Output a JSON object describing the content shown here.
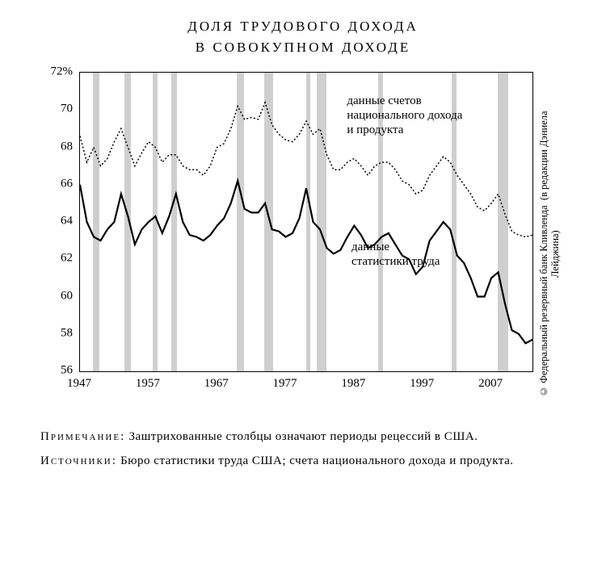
{
  "title_line1": "ДОЛЯ ТРУДОВОГО ДОХОДА",
  "title_line2": "В СОВОКУПНОМ ДОХОДЕ",
  "chart": {
    "type": "line",
    "background_color": "#ffffff",
    "recession_color": "#cfcfcf",
    "axis_color": "#000000",
    "x": {
      "min": 1947,
      "max": 2013,
      "ticks": [
        1947,
        1957,
        1967,
        1977,
        1987,
        1997,
        2007
      ]
    },
    "y": {
      "min": 56,
      "max": 72,
      "ticks": [
        56,
        58,
        60,
        62,
        64,
        66,
        68,
        70
      ],
      "unit_suffix_on_top": "%",
      "top_tick_label": "72%"
    },
    "recessions": [
      {
        "start": 1948.9,
        "end": 1949.8
      },
      {
        "start": 1953.5,
        "end": 1954.4
      },
      {
        "start": 1957.6,
        "end": 1958.3
      },
      {
        "start": 1960.3,
        "end": 1961.1
      },
      {
        "start": 1969.9,
        "end": 1970.9
      },
      {
        "start": 1973.9,
        "end": 1975.2
      },
      {
        "start": 1980.0,
        "end": 1980.6
      },
      {
        "start": 1981.5,
        "end": 1982.9
      },
      {
        "start": 1990.5,
        "end": 1991.2
      },
      {
        "start": 2001.2,
        "end": 2001.9
      },
      {
        "start": 2007.9,
        "end": 2009.5
      }
    ],
    "series": [
      {
        "id": "nipa",
        "label_lines": [
          "данные счетов",
          "национального дохода",
          "и продукта"
        ],
        "label_x": 0.59,
        "label_y": 0.07,
        "color": "#000000",
        "stroke_width": 1.5,
        "dash": "2 2.5",
        "x": [
          1947,
          1948,
          1949,
          1950,
          1951,
          1952,
          1953,
          1954,
          1955,
          1956,
          1957,
          1958,
          1959,
          1960,
          1961,
          1962,
          1963,
          1964,
          1965,
          1966,
          1967,
          1968,
          1969,
          1970,
          1971,
          1972,
          1973,
          1974,
          1975,
          1976,
          1977,
          1978,
          1979,
          1980,
          1981,
          1982,
          1983,
          1984,
          1985,
          1986,
          1987,
          1988,
          1989,
          1990,
          1991,
          1992,
          1993,
          1994,
          1995,
          1996,
          1997,
          1998,
          1999,
          2000,
          2001,
          2002,
          2003,
          2004,
          2005,
          2006,
          2007,
          2008,
          2009,
          2010,
          2011,
          2012,
          2013
        ],
        "y": [
          68.6,
          67.2,
          68.0,
          67.0,
          67.4,
          68.3,
          69.0,
          68.0,
          67.0,
          67.7,
          68.3,
          68.0,
          67.2,
          67.6,
          67.6,
          67.0,
          66.8,
          66.8,
          66.5,
          67.0,
          68.0,
          68.2,
          69.0,
          70.2,
          69.5,
          69.6,
          69.5,
          70.4,
          69.2,
          68.7,
          68.4,
          68.3,
          68.7,
          69.4,
          68.7,
          69.0,
          67.6,
          66.8,
          66.8,
          67.2,
          67.4,
          67.0,
          66.5,
          67.0,
          67.2,
          67.2,
          66.8,
          66.2,
          66.0,
          65.5,
          65.7,
          66.5,
          67.0,
          67.5,
          67.2,
          66.5,
          66.0,
          65.5,
          64.8,
          64.6,
          65.0,
          65.5,
          64.4,
          63.5,
          63.3,
          63.2,
          63.3
        ]
      },
      {
        "id": "bls",
        "label_lines": [
          "данные",
          "статистики труда"
        ],
        "label_x": 0.6,
        "label_y": 0.56,
        "color": "#000000",
        "stroke_width": 2.2,
        "dash": "",
        "x": [
          1947,
          1948,
          1949,
          1950,
          1951,
          1952,
          1953,
          1954,
          1955,
          1956,
          1957,
          1958,
          1959,
          1960,
          1961,
          1962,
          1963,
          1964,
          1965,
          1966,
          1967,
          1968,
          1969,
          1970,
          1971,
          1972,
          1973,
          1974,
          1975,
          1976,
          1977,
          1978,
          1979,
          1980,
          1981,
          1982,
          1983,
          1984,
          1985,
          1986,
          1987,
          1988,
          1989,
          1990,
          1991,
          1992,
          1993,
          1994,
          1995,
          1996,
          1997,
          1998,
          1999,
          2000,
          2001,
          2002,
          2003,
          2004,
          2005,
          2006,
          2007,
          2008,
          2009,
          2010,
          2011,
          2012,
          2013
        ],
        "y": [
          66.0,
          64.0,
          63.2,
          63.0,
          63.6,
          64.0,
          65.5,
          64.3,
          62.8,
          63.6,
          64.0,
          64.3,
          63.4,
          64.3,
          65.5,
          64.0,
          63.3,
          63.2,
          63.0,
          63.3,
          63.8,
          64.2,
          65.0,
          66.2,
          64.7,
          64.5,
          64.5,
          65.0,
          63.6,
          63.5,
          63.2,
          63.4,
          64.2,
          65.8,
          64.0,
          63.6,
          62.6,
          62.3,
          62.5,
          63.2,
          63.8,
          63.3,
          62.6,
          62.8,
          63.2,
          63.4,
          62.8,
          62.2,
          62.0,
          61.2,
          61.6,
          63.0,
          63.5,
          64.0,
          63.6,
          62.2,
          61.8,
          61.0,
          60.0,
          60.0,
          61.0,
          61.3,
          59.6,
          58.2,
          58.0,
          57.5,
          57.7
        ]
      }
    ]
  },
  "credit_line1": "© Федеральный резервный банк Кливленда",
  "credit_line2": "(в редакции Дэниела Лейджина)",
  "note_label": "Примечание:",
  "note_text": " Заштрихованные столбцы означают периоды рецессий в США.",
  "sources_label": "Источники:",
  "sources_text": " Бюро статистики труда США; счета национального дохода и продукта."
}
